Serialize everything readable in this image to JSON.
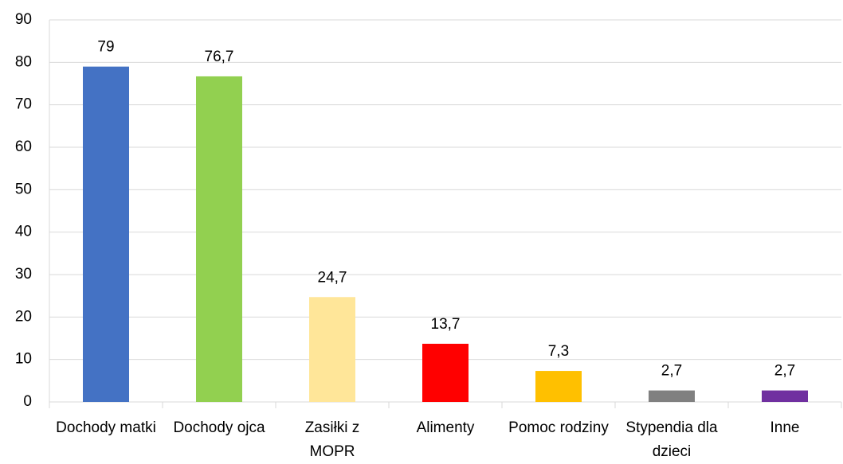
{
  "chart_data": {
    "type": "bar",
    "categories": [
      "Dochody matki",
      "Dochody ojca",
      "Zasiłki z MOPR",
      "Alimenty",
      "Pomoc rodziny",
      "Stypendia dla dzieci",
      "Inne"
    ],
    "values": [
      79,
      76.7,
      24.7,
      13.7,
      7.3,
      2.7,
      2.7
    ],
    "value_labels": [
      "79",
      "76,7",
      "24,7",
      "13,7",
      "7,3",
      "2,7",
      "2,7"
    ],
    "colors": [
      "#4472c4",
      "#92d050",
      "#ffe699",
      "#ff0000",
      "#ffc000",
      "#808080",
      "#7030a0"
    ],
    "ylim": [
      0,
      90
    ],
    "yticks": [
      0,
      10,
      20,
      30,
      40,
      50,
      60,
      70,
      80,
      90
    ],
    "grid": true
  }
}
